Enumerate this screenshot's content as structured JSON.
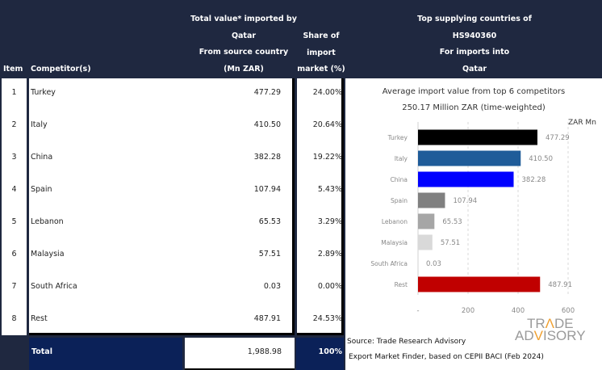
{
  "table": {
    "headers": {
      "item": "Item",
      "competitor": "Competitor(s)",
      "total_value": [
        "Total value* imported by",
        "Qatar",
        "From source country",
        "(Mn ZAR)"
      ],
      "share": [
        "Share of",
        "import",
        "market (%)"
      ],
      "top_supplying": [
        "Top supplying countries of",
        "HS940360",
        "For imports into",
        "Qatar"
      ]
    },
    "rows": [
      {
        "item": "1",
        "competitor": "Turkey",
        "value": "477.29",
        "share": "24.00%"
      },
      {
        "item": "2",
        "competitor": "Italy",
        "value": "410.50",
        "share": "20.64%"
      },
      {
        "item": "3",
        "competitor": "China",
        "value": "382.28",
        "share": "19.22%"
      },
      {
        "item": "4",
        "competitor": "Spain",
        "value": "107.94",
        "share": "5.43%"
      },
      {
        "item": "5",
        "competitor": "Lebanon",
        "value": "65.53",
        "share": "3.29%"
      },
      {
        "item": "6",
        "competitor": "Malaysia",
        "value": "57.51",
        "share": "2.89%"
      },
      {
        "item": "7",
        "competitor": "South Africa",
        "value": "0.03",
        "share": "0.00%"
      },
      {
        "item": "8",
        "competitor": "Rest",
        "value": "487.91",
        "share": "24.53%"
      }
    ],
    "total": {
      "label": "Total",
      "value": "1,988.98",
      "share": "100%"
    }
  },
  "source": {
    "line1": "Source: Trade Research Advisory",
    "line2": "Export Market Finder, based on CEPII BACI (Feb 2024)"
  },
  "logo": {
    "line1_a": "TR",
    "line1_b": "Λ",
    "line1_c": "DE",
    "line2_a": "AD",
    "line2_b": "V",
    "line2_c": "ISORY"
  },
  "chart_data": {
    "type": "bar",
    "orientation": "horizontal",
    "title": "Average import value from top 6 competitors",
    "subtitle": "250.17 Million ZAR (time-weighted)",
    "unit_label": "ZAR Mn",
    "categories": [
      "Turkey",
      "Italy",
      "China",
      "Spain",
      "Lebanon",
      "Malaysia",
      "South Africa",
      "Rest"
    ],
    "values": [
      477.29,
      410.5,
      382.28,
      107.94,
      65.53,
      57.51,
      0.03,
      487.91
    ],
    "value_labels": [
      "477.29",
      "410.50",
      "382.28",
      "107.94",
      "65.53",
      "57.51",
      "0.03",
      "487.91"
    ],
    "colors": [
      "#000000",
      "#1f5c99",
      "#0000ff",
      "#808080",
      "#a6a6a6",
      "#d9d9d9",
      "#ffffff",
      "#c00000"
    ],
    "xlim": [
      0,
      600
    ],
    "xticks": [
      0,
      200,
      400,
      600
    ],
    "xtick_labels": [
      "-",
      "200",
      "400",
      "600"
    ],
    "grid": true,
    "legend": "none"
  }
}
